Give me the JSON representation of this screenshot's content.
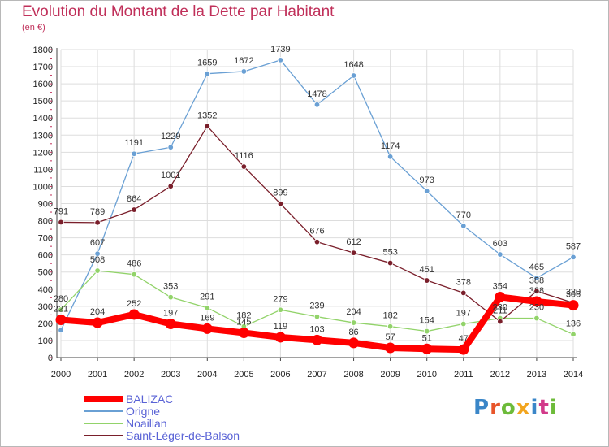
{
  "title": "Evolution du Montant de la Dette par Habitant",
  "subtitle": "(en €)",
  "brand": {
    "letters": [
      "P",
      "r",
      "o",
      "x",
      "i",
      "t",
      "i"
    ],
    "colors": [
      "#3a86c8",
      "#e8552a",
      "#6dbb3a",
      "#f2a51f",
      "#3a86c8",
      "#d23a8a",
      "#6dbb3a"
    ]
  },
  "chart_data": {
    "type": "line",
    "x": [
      "2000",
      "2001",
      "2002",
      "2003",
      "2004",
      "2005",
      "2006",
      "2007",
      "2008",
      "2009",
      "2010",
      "2011",
      "2012",
      "2013",
      "2014"
    ],
    "ylim": [
      0,
      1800
    ],
    "yticks": [
      0,
      100,
      200,
      300,
      400,
      500,
      600,
      700,
      800,
      900,
      1000,
      1100,
      1200,
      1300,
      1400,
      1500,
      1600,
      1700,
      1800
    ],
    "grid": true,
    "legend_position": "bottom-left",
    "series": [
      {
        "name": "BALIZAC",
        "color": "#ff0000",
        "width": 8,
        "marker_r": 6.5,
        "values": [
          221,
          204,
          252,
          197,
          169,
          145,
          119,
          103,
          86,
          57,
          51,
          47,
          354,
          328,
          306
        ],
        "labels": [
          "221",
          "204",
          "252",
          "197",
          "169",
          "145",
          "119",
          "103",
          "86",
          "57",
          "51",
          "47",
          "354",
          "328",
          "306"
        ]
      },
      {
        "name": "Origne",
        "color": "#6aa0d4",
        "width": 1.3,
        "marker_r": 3.3,
        "values": [
          160,
          607,
          1191,
          1229,
          1659,
          1672,
          1739,
          1478,
          1648,
          1174,
          973,
          770,
          603,
          465,
          587
        ],
        "labels": [
          "",
          "607",
          "1191",
          "1229",
          "1659",
          "1672",
          "1739",
          "1478",
          "1648",
          "1174",
          "973",
          "770",
          "603",
          "465",
          "587"
        ]
      },
      {
        "name": "Noaillan",
        "color": "#92d36a",
        "width": 1.3,
        "marker_r": 3.3,
        "values": [
          280,
          508,
          486,
          353,
          291,
          182,
          279,
          239,
          204,
          182,
          154,
          197,
          230,
          230,
          136
        ],
        "labels": [
          "280",
          "508",
          "486",
          "353",
          "291",
          "182",
          "279",
          "239",
          "204",
          "182",
          "154",
          "197",
          "230",
          "230",
          "136"
        ]
      },
      {
        "name": "Saint-Léger-de-Balson",
        "color": "#7a1f2b",
        "width": 1.3,
        "marker_r": 3.3,
        "values": [
          791,
          789,
          864,
          1001,
          1352,
          1116,
          899,
          676,
          612,
          553,
          451,
          378,
          211,
          388,
          320
        ],
        "labels": [
          "791",
          "789",
          "864",
          "1001",
          "1352",
          "1116",
          "899",
          "676",
          "612",
          "553",
          "451",
          "378",
          "211",
          "388",
          "320"
        ]
      }
    ]
  }
}
